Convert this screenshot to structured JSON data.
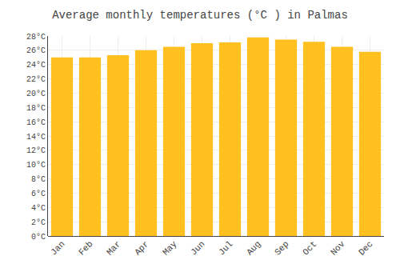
{
  "chart_data": {
    "type": "bar",
    "title": "Average monthly temperatures (°C ) in Palmas",
    "categories": [
      "Jan",
      "Feb",
      "Mar",
      "Apr",
      "May",
      "Jun",
      "Jul",
      "Aug",
      "Sep",
      "Oct",
      "Nov",
      "Dec"
    ],
    "values": [
      25.0,
      25.0,
      25.3,
      26.0,
      26.5,
      27.0,
      27.1,
      27.8,
      27.5,
      27.2,
      26.5,
      25.8
    ],
    "color": "#FFC020",
    "ylim": [
      0,
      28
    ],
    "yticks": [
      {
        "value": 0,
        "label": "0°C"
      },
      {
        "value": 2,
        "label": "2°C"
      },
      {
        "value": 4,
        "label": "4°C"
      },
      {
        "value": 6,
        "label": "6°C"
      },
      {
        "value": 8,
        "label": "8°C"
      },
      {
        "value": 10,
        "label": "10°C"
      },
      {
        "value": 12,
        "label": "12°C"
      },
      {
        "value": 14,
        "label": "14°C"
      },
      {
        "value": 16,
        "label": "16°C"
      },
      {
        "value": 18,
        "label": "18°C"
      },
      {
        "value": 20,
        "label": "20°C"
      },
      {
        "value": 22,
        "label": "22°C"
      },
      {
        "value": 24,
        "label": "24°C"
      },
      {
        "value": 26,
        "label": "26°C"
      },
      {
        "value": 28,
        "label": "28°C"
      }
    ],
    "grid": true
  }
}
